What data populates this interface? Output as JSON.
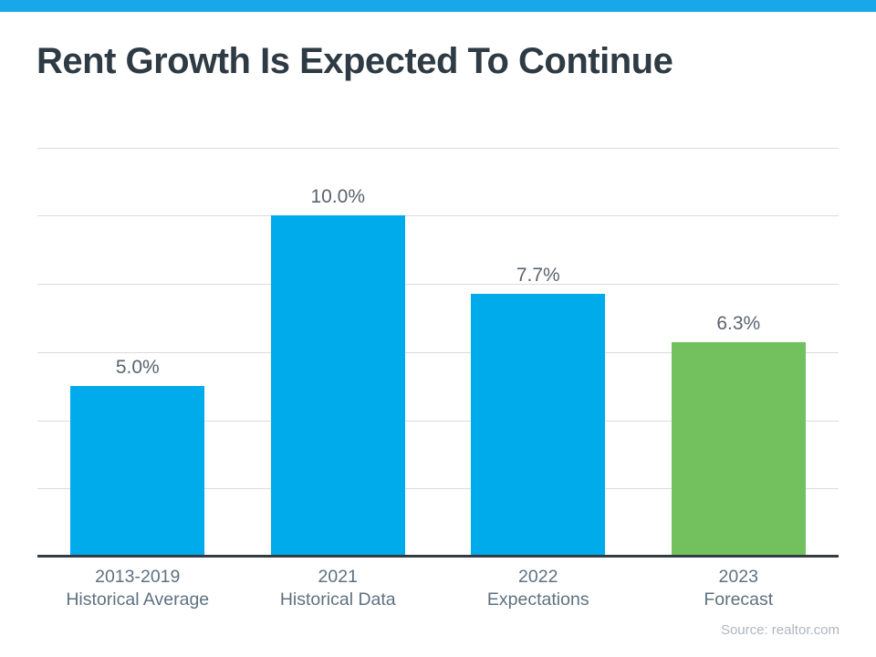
{
  "page": {
    "title": "Rent Growth Is Expected To Continue",
    "source": "Source: realtor.com"
  },
  "colors": {
    "top_strip": "#18A8E9",
    "bar_blue": "#00ABEB",
    "bar_green": "#72C15E",
    "title_text": "#2E3A44",
    "value_label_text": "#5A6370",
    "axis_label_text": "#5E7181",
    "gridline": "#DBDBDB",
    "axis_line": "#333B44",
    "source_text": "#AFB7BE"
  },
  "chart_data": {
    "type": "bar",
    "title": "Rent Growth Is Expected To Continue",
    "categories": [
      "2013-2019\nHistorical Average",
      "2021\nHistorical Data",
      "2022\nExpectations",
      "2023\nForecast"
    ],
    "values": [
      5.0,
      10.0,
      7.7,
      6.3
    ],
    "value_labels": [
      "5.0%",
      "10.0%",
      "7.7%",
      "6.3%"
    ],
    "bar_colors": [
      "#00ABEB",
      "#00ABEB",
      "#00ABEB",
      "#72C15E"
    ],
    "xlabel": "",
    "ylabel": "",
    "ylim": [
      0,
      12
    ],
    "gridline_step": 2,
    "grid": true,
    "legend": false,
    "y_axis_labels_visible": false,
    "source": "Source: realtor.com"
  }
}
